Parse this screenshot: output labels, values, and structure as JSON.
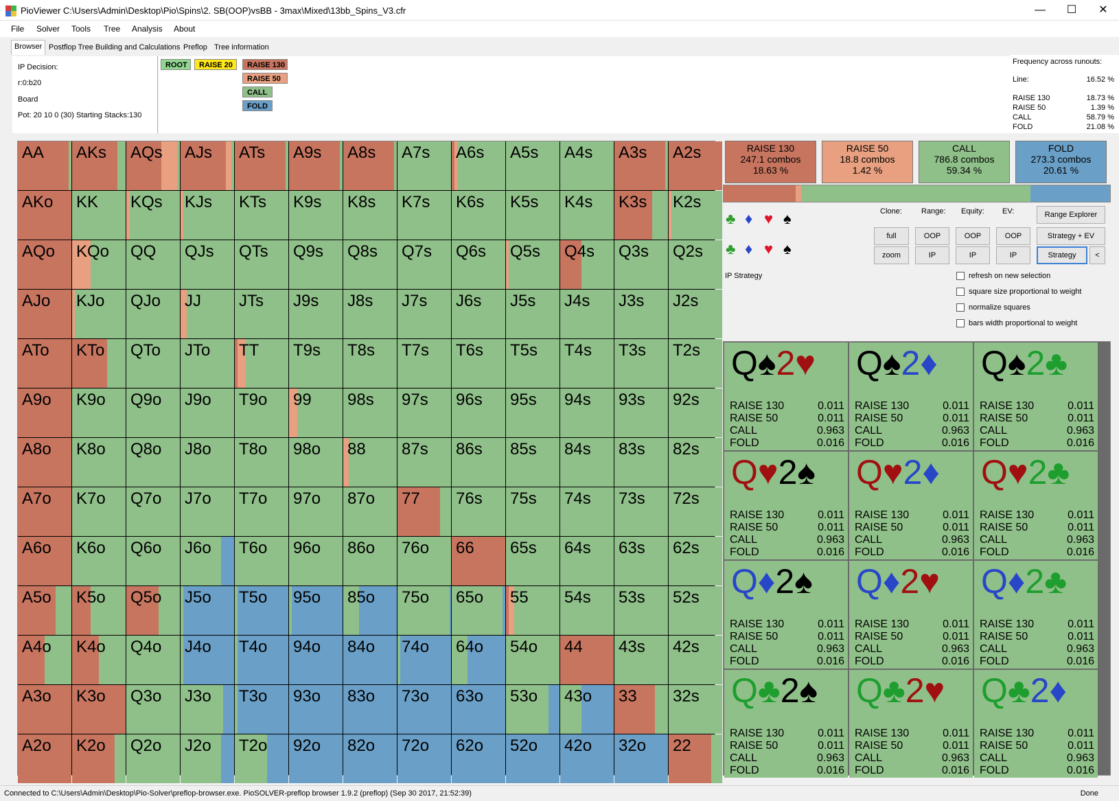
{
  "window": {
    "title": "PioViewer C:\\Users\\Admin\\Desktop\\Pio\\Spins\\2. SB(OOP)vsBB - 3max\\Mixed\\13bb_Spins_V3.cfr",
    "minimize": "—",
    "maximize": "☐",
    "close": "✕"
  },
  "menu": [
    "File",
    "Solver",
    "Tools",
    "Tree",
    "Analysis",
    "About"
  ],
  "tabs": [
    {
      "label": "Browser",
      "active": true
    },
    {
      "label": "Postflop Tree Building and Calculations",
      "active": false
    },
    {
      "label": "Preflop",
      "active": false
    },
    {
      "label": "Tree information",
      "active": false
    }
  ],
  "info": {
    "decision": "IP Decision:",
    "line": "r:0:b20",
    "board": "Board",
    "pot": "Pot: 20 10 0 (30) Starting Stacks:130"
  },
  "tree_nodes": [
    {
      "label": "ROOT",
      "color": "#90d890"
    },
    {
      "label": "RAISE 20",
      "color": "#ffe81a"
    },
    {
      "label": "RAISE 130",
      "color": "#c87560"
    },
    {
      "label": "RAISE 50",
      "color": "#e8a080"
    },
    {
      "label": "CALL",
      "color": "#90c08a"
    },
    {
      "label": "FOLD",
      "color": "#6aa0c8"
    }
  ],
  "freq_runouts": {
    "title": "Frequency across runouts:",
    "line_label": "Line:",
    "line_value": "16.52 %",
    "rows": [
      {
        "label": "RAISE 130",
        "value": "18.73 %"
      },
      {
        "label": "RAISE 50",
        "value": "1.39 %"
      },
      {
        "label": "CALL",
        "value": "58.79 %"
      },
      {
        "label": "FOLD",
        "value": "21.08 %"
      }
    ]
  },
  "colors": {
    "raise130": "#c87560",
    "raise50": "#e8a080",
    "call": "#90c08a",
    "fold": "#6aa0c8"
  },
  "ranks": [
    "A",
    "K",
    "Q",
    "J",
    "T",
    "9",
    "8",
    "7",
    "6",
    "5",
    "4",
    "3",
    "2"
  ],
  "matrix": [
    [
      "AA",
      "AKs",
      "AQs",
      "AJs",
      "ATs",
      "A9s",
      "A8s",
      "A7s",
      "A6s",
      "A5s",
      "A4s",
      "A3s",
      "A2s"
    ],
    [
      "AKo",
      "KK",
      "KQs",
      "KJs",
      "KTs",
      "K9s",
      "K8s",
      "K7s",
      "K6s",
      "K5s",
      "K4s",
      "K3s",
      "K2s"
    ],
    [
      "AQo",
      "KQo",
      "QQ",
      "QJs",
      "QTs",
      "Q9s",
      "Q8s",
      "Q7s",
      "Q6s",
      "Q5s",
      "Q4s",
      "Q3s",
      "Q2s"
    ],
    [
      "AJo",
      "KJo",
      "QJo",
      "JJ",
      "JTs",
      "J9s",
      "J8s",
      "J7s",
      "J6s",
      "J5s",
      "J4s",
      "J3s",
      "J2s"
    ],
    [
      "ATo",
      "KTo",
      "QTo",
      "JTo",
      "TT",
      "T9s",
      "T8s",
      "T7s",
      "T6s",
      "T5s",
      "T4s",
      "T3s",
      "T2s"
    ],
    [
      "A9o",
      "K9o",
      "Q9o",
      "J9o",
      "T9o",
      "99",
      "98s",
      "97s",
      "96s",
      "95s",
      "94s",
      "93s",
      "92s"
    ],
    [
      "A8o",
      "K8o",
      "Q8o",
      "J8o",
      "T8o",
      "98o",
      "88",
      "87s",
      "86s",
      "85s",
      "84s",
      "83s",
      "82s"
    ],
    [
      "A7o",
      "K7o",
      "Q7o",
      "J7o",
      "T7o",
      "97o",
      "87o",
      "77",
      "76s",
      "75s",
      "74s",
      "73s",
      "72s"
    ],
    [
      "A6o",
      "K6o",
      "Q6o",
      "J6o",
      "T6o",
      "96o",
      "86o",
      "76o",
      "66",
      "65s",
      "64s",
      "63s",
      "62s"
    ],
    [
      "A5o",
      "K5o",
      "Q5o",
      "J5o",
      "T5o",
      "95o",
      "85o",
      "75o",
      "65o",
      "55",
      "54s",
      "53s",
      "52s"
    ],
    [
      "A4o",
      "K4o",
      "Q4o",
      "J4o",
      "T4o",
      "94o",
      "84o",
      "74o",
      "64o",
      "54o",
      "44",
      "43s",
      "42s"
    ],
    [
      "A3o",
      "K3o",
      "Q3o",
      "J3o",
      "T3o",
      "93o",
      "83o",
      "73o",
      "63o",
      "53o",
      "43o",
      "33",
      "32s"
    ],
    [
      "A2o",
      "K2o",
      "Q2o",
      "J2o",
      "T2o",
      "92o",
      "82o",
      "72o",
      "62o",
      "52o",
      "42o",
      "32o",
      "22"
    ]
  ],
  "strategy": {
    "AA": [
      0.95,
      0,
      0.05,
      0
    ],
    "AKs": [
      0.85,
      0,
      0.15,
      0
    ],
    "AQs": [
      0.65,
      0.3,
      0.05,
      0
    ],
    "AJs": [
      0.85,
      0.1,
      0.05,
      0
    ],
    "ATs": [
      0.95,
      0,
      0.05,
      0
    ],
    "A9s": [
      0.95,
      0,
      0.05,
      0
    ],
    "A8s": [
      0.95,
      0,
      0.05,
      0
    ],
    "A7s": [
      0,
      0,
      1,
      0
    ],
    "A6s": [
      0.05,
      0.05,
      0.9,
      0
    ],
    "A5s": [
      0,
      0,
      1,
      0
    ],
    "A4s": [
      0,
      0,
      1,
      0
    ],
    "A3s": [
      0.95,
      0,
      0.05,
      0
    ],
    "A2s": [
      1,
      0,
      0,
      0
    ],
    "AKo": [
      1,
      0,
      0,
      0
    ],
    "K3s": [
      0.7,
      0,
      0.3,
      0
    ],
    "K2s": [
      0,
      0.05,
      0.95,
      0
    ],
    "KQs": [
      0,
      0.07,
      0.93,
      0
    ],
    "KJs": [
      0,
      0.05,
      0.95,
      0
    ],
    "AQo": [
      1,
      0,
      0,
      0
    ],
    "KQo": [
      0,
      0.35,
      0.65,
      0
    ],
    "Q4s": [
      0.4,
      0,
      0.6,
      0
    ],
    "Q5s": [
      0,
      0.05,
      0.95,
      0
    ],
    "AJo": [
      1,
      0,
      0,
      0
    ],
    "KJo": [
      0,
      0.05,
      0.95,
      0
    ],
    "JJ": [
      0,
      0.12,
      0.88,
      0
    ],
    "ATo": [
      1,
      0,
      0,
      0
    ],
    "KTo": [
      0.65,
      0,
      0.35,
      0
    ],
    "TT": [
      0.05,
      0.15,
      0.8,
      0
    ],
    "A9o": [
      1,
      0,
      0,
      0
    ],
    "99": [
      0,
      0.15,
      0.85,
      0
    ],
    "A8o": [
      1,
      0,
      0,
      0
    ],
    "88": [
      0,
      0.1,
      0.9,
      0
    ],
    "A7o": [
      1,
      0,
      0,
      0
    ],
    "77": [
      0.8,
      0,
      0.2,
      0
    ],
    "A6o": [
      1,
      0,
      0,
      0
    ],
    "J6o": [
      0,
      0,
      0.75,
      0.25
    ],
    "66": [
      1,
      0,
      0,
      0
    ],
    "A5o": [
      0.7,
      0,
      0.3,
      0
    ],
    "K5o": [
      0.35,
      0,
      0.65,
      0
    ],
    "Q5o": [
      0.6,
      0,
      0.4,
      0
    ],
    "J5o": [
      0,
      0,
      0.05,
      0.95
    ],
    "T5o": [
      0,
      0,
      0.05,
      0.95
    ],
    "95o": [
      0,
      0,
      0.05,
      0.95
    ],
    "85o": [
      0,
      0,
      0.3,
      0.7
    ],
    "75o": [
      0,
      0,
      0.98,
      0.02
    ],
    "65o": [
      0,
      0,
      0.95,
      0.05
    ],
    "55": [
      0.05,
      0.1,
      0.85,
      0
    ],
    "A4o": [
      0.5,
      0,
      0.5,
      0
    ],
    "K4o": [
      0.5,
      0,
      0.5,
      0
    ],
    "J4o": [
      0,
      0,
      0.05,
      0.95
    ],
    "T4o": [
      0,
      0,
      0.05,
      0.95
    ],
    "94o": [
      0,
      0,
      0,
      1
    ],
    "84o": [
      0,
      0,
      0,
      1
    ],
    "74o": [
      0,
      0,
      0.05,
      0.95
    ],
    "64o": [
      0,
      0,
      0.3,
      0.7
    ],
    "44": [
      1,
      0,
      0,
      0
    ],
    "A3o": [
      1,
      0,
      0,
      0
    ],
    "K3o": [
      1,
      0,
      0,
      0
    ],
    "J3o": [
      0,
      0,
      0.8,
      0.2
    ],
    "T3o": [
      0,
      0,
      0.05,
      0.95
    ],
    "93o": [
      0,
      0,
      0,
      1
    ],
    "83o": [
      0,
      0,
      0,
      1
    ],
    "73o": [
      0,
      0,
      0,
      1
    ],
    "63o": [
      0,
      0,
      0,
      1
    ],
    "53o": [
      0,
      0,
      0.8,
      0.2
    ],
    "43o": [
      0,
      0,
      0.4,
      0.6
    ],
    "33": [
      0.75,
      0,
      0.25,
      0
    ],
    "A2o": [
      1,
      0,
      0,
      0
    ],
    "K2o": [
      0.8,
      0,
      0.2,
      0
    ],
    "J2o": [
      0,
      0,
      0.75,
      0.25
    ],
    "T2o": [
      0,
      0,
      0.6,
      0.4
    ],
    "92o": [
      0,
      0,
      0,
      1
    ],
    "82o": [
      0,
      0,
      0,
      1
    ],
    "72o": [
      0,
      0,
      0,
      1
    ],
    "62o": [
      0,
      0,
      0,
      1
    ],
    "52o": [
      0,
      0,
      0,
      1
    ],
    "42o": [
      0,
      0,
      0,
      1
    ],
    "32o": [
      0,
      0,
      0,
      1
    ],
    "22": [
      0.8,
      0,
      0.2,
      0
    ]
  },
  "actions": [
    {
      "name": "RAISE 130",
      "combos": "247.1 combos",
      "pct": "18.63 %",
      "color": "#c87560"
    },
    {
      "name": "RAISE 50",
      "combos": "18.8 combos",
      "pct": "1.42 %",
      "color": "#e8a080"
    },
    {
      "name": "CALL",
      "combos": "786.8 combos",
      "pct": "59.34 %",
      "color": "#90c08a"
    },
    {
      "name": "FOLD",
      "combos": "273.3 combos",
      "pct": "20.61 %",
      "color": "#6aa0c8"
    }
  ],
  "freq_bar": [
    0.1863,
    0.0142,
    0.5934,
    0.2061
  ],
  "suits": [
    {
      "glyph": "♣",
      "color": "#2e9e2e"
    },
    {
      "glyph": "♦",
      "color": "#2846c8"
    },
    {
      "glyph": "♥",
      "color": "#e0142a"
    },
    {
      "glyph": "♠",
      "color": "#000000"
    }
  ],
  "controls": {
    "clone_label": "Clone:",
    "range_label": "Range:",
    "equity_label": "Equity:",
    "ev_label": "EV:",
    "full": "full",
    "zoom": "zoom",
    "oop": "OOP",
    "ip": "IP",
    "range_explorer": "Range Explorer",
    "strategy_ev": "Strategy + EV",
    "strategy": "Strategy",
    "collapse": "<"
  },
  "ip_strategy_label": "IP Strategy",
  "checkboxes": [
    "refresh on new selection",
    "square size proportional to weight",
    "normalize squares",
    "bars width proportional to weight"
  ],
  "combos": [
    {
      "r1": "Q",
      "s1": "♠",
      "c1": "#000000",
      "r2": "2",
      "s2": "♥",
      "c2": "#a01010"
    },
    {
      "r1": "Q",
      "s1": "♠",
      "c1": "#000000",
      "r2": "2",
      "s2": "♦",
      "c2": "#2846c8"
    },
    {
      "r1": "Q",
      "s1": "♠",
      "c1": "#000000",
      "r2": "2",
      "s2": "♣",
      "c2": "#1e9e2e"
    },
    {
      "r1": "Q",
      "s1": "♥",
      "c1": "#a01010",
      "r2": "2",
      "s2": "♠",
      "c2": "#000000"
    },
    {
      "r1": "Q",
      "s1": "♥",
      "c1": "#a01010",
      "r2": "2",
      "s2": "♦",
      "c2": "#2846c8"
    },
    {
      "r1": "Q",
      "s1": "♥",
      "c1": "#a01010",
      "r2": "2",
      "s2": "♣",
      "c2": "#1e9e2e"
    },
    {
      "r1": "Q",
      "s1": "♦",
      "c1": "#2846c8",
      "r2": "2",
      "s2": "♠",
      "c2": "#000000"
    },
    {
      "r1": "Q",
      "s1": "♦",
      "c1": "#2846c8",
      "r2": "2",
      "s2": "♥",
      "c2": "#a01010"
    },
    {
      "r1": "Q",
      "s1": "♦",
      "c1": "#2846c8",
      "r2": "2",
      "s2": "♣",
      "c2": "#1e9e2e"
    },
    {
      "r1": "Q",
      "s1": "♣",
      "c1": "#1e9e2e",
      "r2": "2",
      "s2": "♠",
      "c2": "#000000"
    },
    {
      "r1": "Q",
      "s1": "♣",
      "c1": "#1e9e2e",
      "r2": "2",
      "s2": "♥",
      "c2": "#a01010"
    },
    {
      "r1": "Q",
      "s1": "♣",
      "c1": "#1e9e2e",
      "r2": "2",
      "s2": "♦",
      "c2": "#2846c8"
    }
  ],
  "combo_rows": [
    {
      "label": "RAISE 130",
      "value": "0.011"
    },
    {
      "label": "RAISE 50",
      "value": "0.011"
    },
    {
      "label": "CALL",
      "value": "0.963"
    },
    {
      "label": "FOLD",
      "value": "0.016"
    }
  ],
  "status": {
    "text": "Connected to C:\\Users\\Admin\\Desktop\\Pio-Solver\\preflop-browser.exe. PioSOLVER-preflop browser 1.9.2 (preflop) (Sep 30 2017, 21:52:39)",
    "done": "Done"
  }
}
